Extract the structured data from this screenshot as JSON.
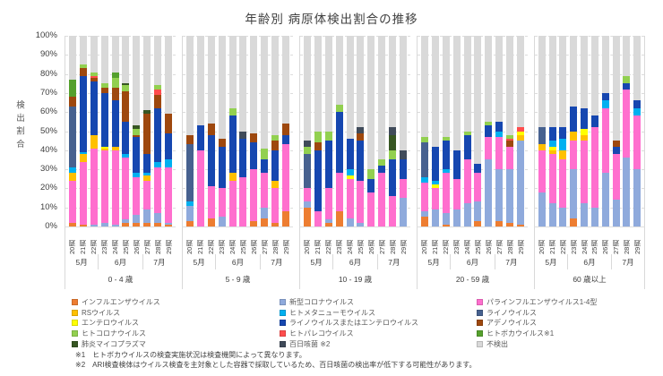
{
  "chart_data": {
    "type": "bar",
    "stacked": true,
    "title": "年齢別 病原体検出割合の推移",
    "ylabel": "検出割合",
    "unit": "%",
    "ylim": [
      0,
      100
    ],
    "ytick_step": 10,
    "grid": "dashed-horizontal",
    "legend_position": "bottom",
    "weeks": [
      "20週",
      "21週",
      "22週",
      "23週",
      "24週",
      "25週",
      "26週",
      "27週",
      "28週",
      "29週"
    ],
    "months": [
      {
        "label": "5月",
        "span": 3
      },
      {
        "label": "6月",
        "span": 4
      },
      {
        "label": "7月",
        "span": 3
      }
    ],
    "series": [
      {
        "key": "influenza",
        "label": "インフルエンザウイルス",
        "color": "#ED7D31"
      },
      {
        "key": "covid",
        "label": "新型コロナウイルス",
        "color": "#8FAADC"
      },
      {
        "key": "parainfluenza",
        "label": "パラインフルエンザウイルス1-4型",
        "color": "#FF6FCE"
      },
      {
        "key": "rs",
        "label": "RSウイルス",
        "color": "#FFC000"
      },
      {
        "key": "entero",
        "label": "エンテロウイルス",
        "color": "#FFFF00"
      },
      {
        "key": "metapneumo",
        "label": "ヒトメタニューモウイルス",
        "color": "#00B0F0"
      },
      {
        "key": "rhino_or_entero",
        "label": "ライノウイルスまたはエンテロウイルス",
        "color": "#1647B0"
      },
      {
        "key": "rhino",
        "label": "ライノウイルス",
        "color": "#47618F"
      },
      {
        "key": "adeno",
        "label": "アデノウイルス",
        "color": "#9E480E"
      },
      {
        "key": "parecho",
        "label": "ヒトパレコウイルス",
        "color": "#FF4D4D"
      },
      {
        "key": "hcov",
        "label": "ヒトコロナウイルス",
        "color": "#92D050"
      },
      {
        "key": "boca",
        "label": "ヒトボカウイルス※1",
        "color": "#55A02D"
      },
      {
        "key": "myco",
        "label": "肺炎マイコプラズマ",
        "color": "#375623"
      },
      {
        "key": "pertussis",
        "label": "百日咳菌 ※2",
        "color": "#404B5A"
      },
      {
        "key": "not_detected",
        "label": "不検出",
        "color": "#D9D9D9"
      }
    ],
    "legend_columns": [
      [
        "influenza",
        "rs",
        "entero",
        "hcov",
        "myco"
      ],
      [
        "covid",
        "metapneumo",
        "rhino_or_entero",
        "parecho",
        "pertussis"
      ],
      [
        "parainfluenza",
        "rhino",
        "adeno",
        "boca",
        "not_detected"
      ]
    ],
    "panels": [
      {
        "age_group": "0 - 4 歳",
        "bars": [
          [
            2,
            0,
            22,
            4,
            0,
            3,
            0,
            32,
            5,
            0,
            0,
            9,
            0,
            0,
            23
          ],
          [
            1,
            0,
            33,
            4,
            0,
            1,
            40,
            0,
            4,
            0,
            2,
            0,
            0,
            0,
            15
          ],
          [
            0,
            1,
            40,
            7,
            0,
            0,
            28,
            0,
            2,
            1,
            2,
            0,
            0,
            0,
            19
          ],
          [
            0,
            2,
            38,
            1,
            1,
            0,
            28,
            0,
            3,
            0,
            2,
            0,
            0,
            0,
            25
          ],
          [
            0,
            1,
            39,
            2,
            0,
            0,
            24,
            0,
            7,
            0,
            5,
            3,
            0,
            0,
            19
          ],
          [
            2,
            2,
            32,
            0,
            0,
            2,
            17,
            0,
            16,
            0,
            3,
            0,
            1,
            0,
            25
          ],
          [
            2,
            4,
            20,
            0,
            0,
            2,
            19,
            0,
            1,
            0,
            3,
            0,
            2,
            0,
            47
          ],
          [
            2,
            7,
            15,
            3,
            0,
            1,
            10,
            0,
            21,
            0,
            0,
            0,
            2,
            0,
            39
          ],
          [
            2,
            5,
            24,
            0,
            0,
            3,
            28,
            0,
            7,
            3,
            2,
            0,
            0,
            0,
            26
          ],
          [
            1,
            1,
            29,
            0,
            0,
            4,
            14,
            0,
            10,
            0,
            0,
            0,
            0,
            0,
            41
          ]
        ]
      },
      {
        "age_group": "5 - 9 歳",
        "bars": [
          [
            3,
            8,
            0,
            0,
            0,
            2,
            0,
            30,
            5,
            0,
            0,
            0,
            0,
            0,
            52
          ],
          [
            0,
            0,
            40,
            0,
            0,
            0,
            13,
            0,
            0,
            0,
            0,
            0,
            0,
            0,
            47
          ],
          [
            4,
            0,
            17,
            0,
            0,
            0,
            27,
            0,
            6,
            0,
            0,
            0,
            0,
            0,
            46
          ],
          [
            0,
            5,
            15,
            0,
            0,
            0,
            22,
            0,
            4,
            0,
            0,
            0,
            0,
            0,
            54
          ],
          [
            0,
            0,
            24,
            4,
            0,
            0,
            30,
            0,
            0,
            0,
            4,
            0,
            0,
            0,
            38
          ],
          [
            0,
            0,
            26,
            0,
            0,
            0,
            20,
            0,
            0,
            0,
            0,
            0,
            0,
            4,
            50
          ],
          [
            3,
            0,
            27,
            0,
            0,
            0,
            14,
            0,
            5,
            0,
            0,
            0,
            0,
            0,
            51
          ],
          [
            4,
            6,
            18,
            0,
            0,
            0,
            7,
            0,
            0,
            0,
            6,
            0,
            0,
            0,
            59
          ],
          [
            2,
            0,
            18,
            4,
            0,
            0,
            16,
            0,
            5,
            0,
            3,
            0,
            0,
            0,
            52
          ],
          [
            8,
            0,
            35,
            0,
            0,
            0,
            5,
            0,
            6,
            0,
            0,
            0,
            0,
            0,
            46
          ]
        ]
      },
      {
        "age_group": "10 - 19 歳",
        "bars": [
          [
            10,
            3,
            7,
            0,
            0,
            0,
            0,
            18,
            0,
            0,
            4,
            0,
            0,
            3,
            55
          ],
          [
            0,
            0,
            8,
            0,
            0,
            0,
            32,
            0,
            4,
            0,
            6,
            0,
            0,
            0,
            50
          ],
          [
            2,
            2,
            16,
            0,
            0,
            0,
            25,
            0,
            0,
            0,
            5,
            0,
            0,
            0,
            50
          ],
          [
            8,
            0,
            20,
            0,
            0,
            0,
            32,
            0,
            0,
            0,
            4,
            0,
            0,
            0,
            36
          ],
          [
            0,
            4,
            21,
            0,
            2,
            3,
            16,
            0,
            0,
            0,
            0,
            0,
            0,
            0,
            54
          ],
          [
            0,
            2,
            22,
            0,
            0,
            0,
            21,
            0,
            4,
            0,
            0,
            0,
            0,
            3,
            48
          ],
          [
            0,
            0,
            18,
            0,
            0,
            0,
            7,
            0,
            0,
            0,
            5,
            0,
            0,
            0,
            70
          ],
          [
            0,
            0,
            28,
            0,
            0,
            0,
            4,
            0,
            0,
            0,
            3,
            0,
            0,
            0,
            65
          ],
          [
            0,
            0,
            16,
            0,
            0,
            0,
            19,
            0,
            0,
            0,
            5,
            0,
            8,
            4,
            48
          ],
          [
            0,
            15,
            10,
            0,
            0,
            0,
            10,
            0,
            0,
            0,
            0,
            0,
            0,
            5,
            60
          ]
        ]
      },
      {
        "age_group": "20 - 59 歳",
        "bars": [
          [
            5,
            3,
            15,
            0,
            0,
            3,
            0,
            18,
            0,
            0,
            3,
            0,
            0,
            0,
            53
          ],
          [
            0,
            9,
            11,
            0,
            2,
            2,
            18,
            0,
            0,
            0,
            0,
            0,
            0,
            0,
            58
          ],
          [
            1,
            6,
            21,
            0,
            0,
            2,
            15,
            0,
            0,
            0,
            2,
            0,
            0,
            0,
            53
          ],
          [
            0,
            9,
            16,
            0,
            0,
            0,
            15,
            0,
            0,
            0,
            0,
            0,
            0,
            0,
            60
          ],
          [
            0,
            12,
            23,
            0,
            0,
            0,
            13,
            0,
            0,
            0,
            2,
            0,
            0,
            0,
            50
          ],
          [
            3,
            10,
            15,
            0,
            0,
            0,
            5,
            0,
            0,
            0,
            0,
            0,
            0,
            0,
            67
          ],
          [
            0,
            35,
            12,
            0,
            0,
            0,
            6,
            0,
            0,
            0,
            2,
            0,
            0,
            0,
            45
          ],
          [
            3,
            27,
            17,
            0,
            0,
            3,
            5,
            0,
            0,
            0,
            0,
            0,
            0,
            0,
            45
          ],
          [
            2,
            28,
            12,
            0,
            0,
            0,
            0,
            0,
            3,
            1,
            2,
            0,
            0,
            0,
            52
          ],
          [
            1,
            44,
            0,
            3,
            2,
            0,
            0,
            0,
            0,
            2,
            0,
            0,
            0,
            0,
            48
          ]
        ]
      },
      {
        "age_group": "60 歳以上",
        "bars": [
          [
            0,
            18,
            22,
            3,
            0,
            0,
            0,
            9,
            0,
            0,
            0,
            0,
            0,
            0,
            48
          ],
          [
            0,
            12,
            26,
            2,
            2,
            3,
            7,
            0,
            0,
            0,
            0,
            0,
            0,
            0,
            48
          ],
          [
            0,
            10,
            25,
            5,
            0,
            6,
            6,
            0,
            0,
            0,
            0,
            0,
            0,
            0,
            48
          ],
          [
            4,
            26,
            15,
            5,
            0,
            0,
            13,
            0,
            0,
            0,
            0,
            0,
            0,
            0,
            37
          ],
          [
            0,
            12,
            33,
            3,
            3,
            0,
            11,
            0,
            0,
            0,
            0,
            0,
            0,
            0,
            38
          ],
          [
            0,
            10,
            42,
            0,
            0,
            0,
            6,
            0,
            0,
            0,
            0,
            0,
            0,
            0,
            42
          ],
          [
            0,
            28,
            34,
            0,
            0,
            4,
            4,
            0,
            0,
            0,
            0,
            0,
            0,
            0,
            30
          ],
          [
            0,
            14,
            24,
            0,
            0,
            0,
            4,
            0,
            3,
            0,
            0,
            0,
            0,
            0,
            55
          ],
          [
            0,
            36,
            36,
            0,
            0,
            0,
            3,
            0,
            0,
            0,
            4,
            0,
            0,
            0,
            21
          ],
          [
            0,
            30,
            28,
            0,
            0,
            4,
            4,
            0,
            0,
            0,
            0,
            0,
            0,
            0,
            34
          ]
        ]
      }
    ]
  },
  "footnotes": [
    "※1　ヒトボカウイルスの検査実施状況は検査機関によって異なります。",
    "※2　ARI検査検体はウイルス検査を主対象とした容器で採取しているため、百日咳菌の検出率が低下する可能性があります。"
  ]
}
